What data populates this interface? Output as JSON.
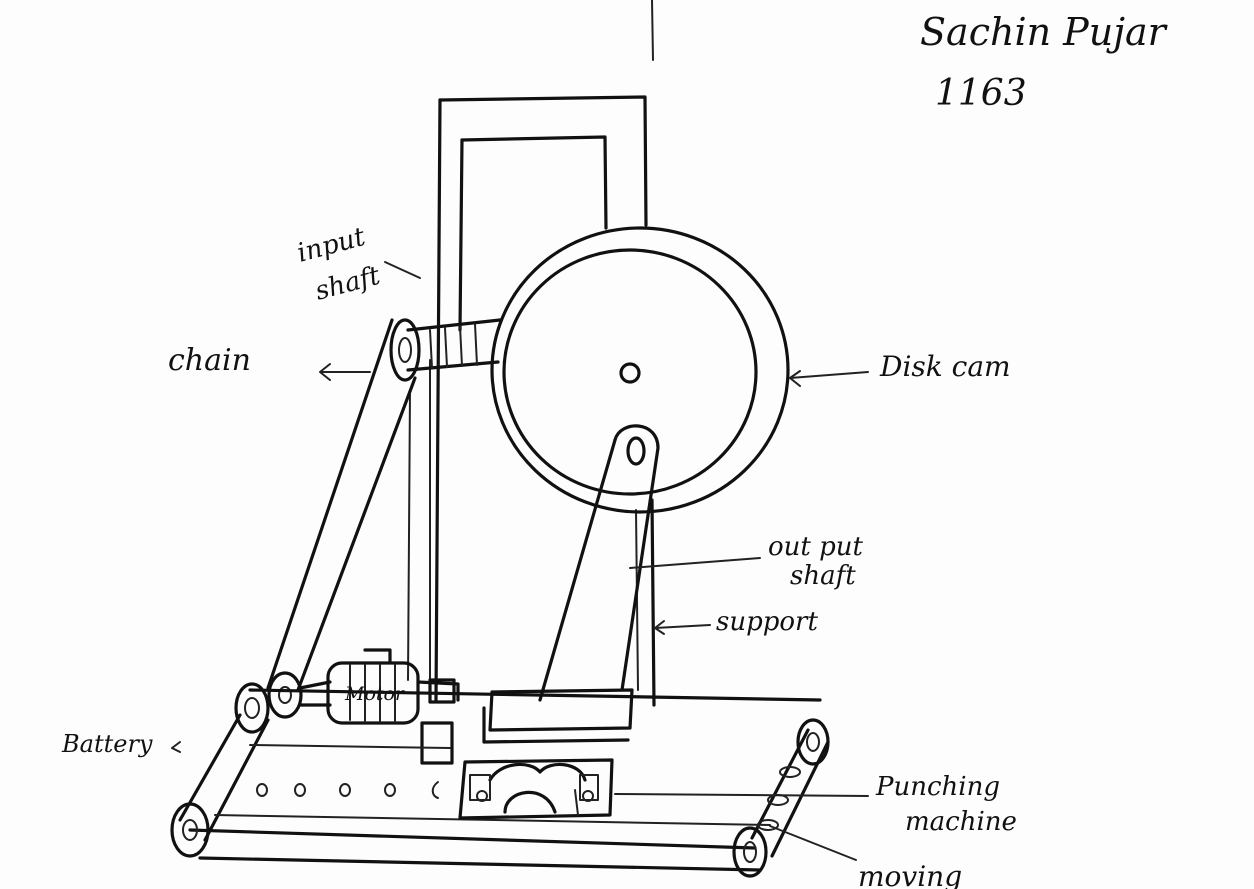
{
  "author": {
    "name": "Sachin Pujar",
    "number": "1163"
  },
  "labels": {
    "input_shaft_line1": "input",
    "input_shaft_line2": "shaft",
    "chain": "chain",
    "disk_cam": "Disk cam",
    "output_shaft_line1": "out put",
    "output_shaft_line2": "shaft",
    "support": "support",
    "motor": "Motor",
    "battery": "Battery",
    "punching_line1": "Punching",
    "punching_line2": "machine",
    "moving": "moving"
  }
}
